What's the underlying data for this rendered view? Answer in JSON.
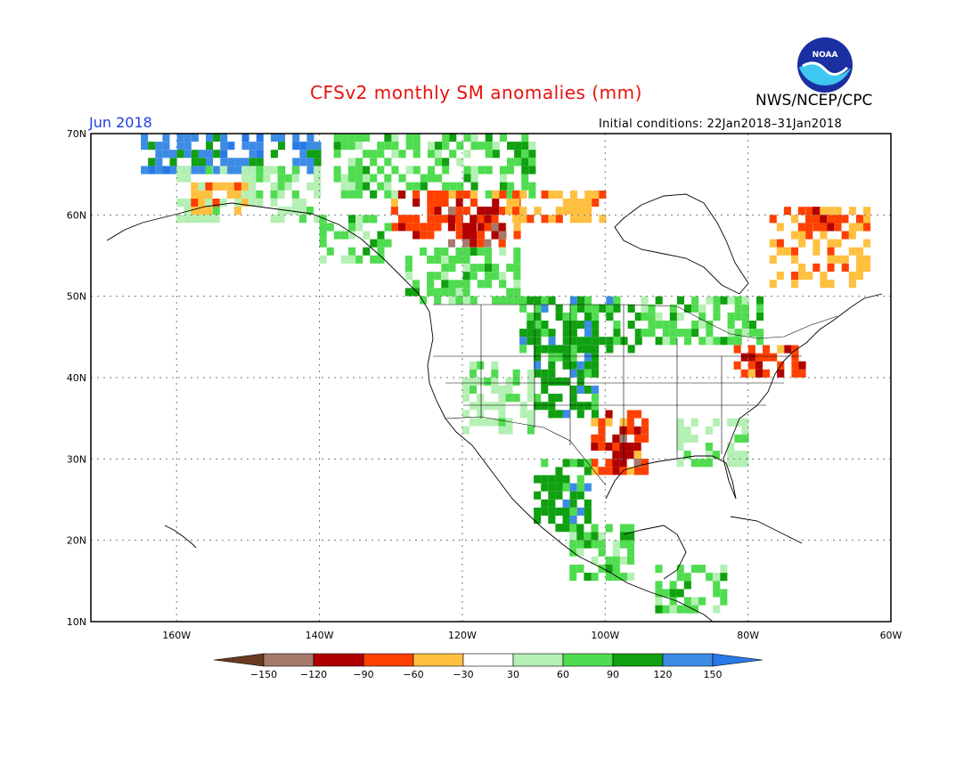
{
  "title": "CFSv2 monthly SM anomalies (mm)",
  "agency": "NWS/NCEP/CPC",
  "logo_text": "NOAA",
  "valid_month": "Jun 2018",
  "initial_conditions": "Initial conditions: 22Jan2018–31Jan2018",
  "map": {
    "lon_range": [
      -172,
      -60
    ],
    "lat_range": [
      10,
      70
    ],
    "lat_labels": [
      "70N",
      "60N",
      "50N",
      "40N",
      "30N",
      "20N",
      "10N"
    ],
    "lat_values": [
      70,
      60,
      50,
      40,
      30,
      20,
      10
    ],
    "lon_labels": [
      "160W",
      "140W",
      "120W",
      "100W",
      "80W",
      "60W"
    ],
    "lon_values": [
      -160,
      -140,
      -120,
      -100,
      -80,
      -60
    ],
    "grid_style": "dotted"
  },
  "colorbar": {
    "labels": [
      "−150",
      "−120",
      "−90",
      "−60",
      "−30",
      "30",
      "60",
      "90",
      "120",
      "150"
    ],
    "colors": [
      "#6b3a22",
      "#a57a6c",
      "#b00000",
      "#ff4000",
      "#ffc040",
      "#ffffff",
      "#b4f0b4",
      "#50dc50",
      "#10a010",
      "#3c8ce6",
      "#2878e6"
    ]
  },
  "anomaly_regions": [
    {
      "name": "alaska-north-slope",
      "lon": [
        -165,
        -140
      ],
      "lat": [
        66,
        70
      ],
      "level": 9
    },
    {
      "name": "yukon-north",
      "lon": [
        -138,
        -110
      ],
      "lat": [
        63,
        70
      ],
      "level": 7
    },
    {
      "name": "nw-territories-dry",
      "lon": [
        -130,
        -112
      ],
      "lat": [
        58,
        63
      ],
      "level": 3
    },
    {
      "name": "nw-territories-very-dry",
      "lon": [
        -122,
        -114
      ],
      "lat": [
        57,
        61
      ],
      "level": 2
    },
    {
      "name": "alaska-interior",
      "lon": [
        -160,
        -140
      ],
      "lat": [
        60,
        66
      ],
      "level": 6
    },
    {
      "name": "southern-alaska-dry",
      "lon": [
        -158,
        -150
      ],
      "lat": [
        61,
        64
      ],
      "level": 4
    },
    {
      "name": "alaska-panhandle",
      "lon": [
        -140,
        -130
      ],
      "lat": [
        55,
        60
      ],
      "level": 7
    },
    {
      "name": "british-columbia",
      "lon": [
        -128,
        -112
      ],
      "lat": [
        50,
        56
      ],
      "level": 7
    },
    {
      "name": "hudson-north-dry",
      "lon": [
        -114,
        -100
      ],
      "lat": [
        60,
        63
      ],
      "level": 4
    },
    {
      "name": "quebec-labrador-dry",
      "lon": [
        -77,
        -63
      ],
      "lat": [
        52,
        61
      ],
      "level": 4
    },
    {
      "name": "ungava-red",
      "lon": [
        -73,
        -66
      ],
      "lat": [
        59,
        61
      ],
      "level": 3
    },
    {
      "name": "north-plains-wet",
      "lon": [
        -112,
        -95
      ],
      "lat": [
        44,
        50
      ],
      "level": 8
    },
    {
      "name": "great-lakes-wet",
      "lon": [
        -95,
        -78
      ],
      "lat": [
        45,
        50
      ],
      "level": 7
    },
    {
      "name": "central-rockies-wet",
      "lon": [
        -110,
        -101
      ],
      "lat": [
        36,
        44
      ],
      "level": 8
    },
    {
      "name": "great-basin-light",
      "lon": [
        -120,
        -110
      ],
      "lat": [
        34,
        42
      ],
      "level": 6
    },
    {
      "name": "southern-plains-dry",
      "lon": [
        -102,
        -94
      ],
      "lat": [
        29,
        36
      ],
      "level": 3
    },
    {
      "name": "texas-red",
      "lon": [
        -99,
        -95
      ],
      "lat": [
        30,
        34
      ],
      "level": 2
    },
    {
      "name": "mexico-sierra-wet",
      "lon": [
        -110,
        -102
      ],
      "lat": [
        22,
        30
      ],
      "level": 8
    },
    {
      "name": "mexico-south-wet",
      "lon": [
        -105,
        -96
      ],
      "lat": [
        16,
        22
      ],
      "level": 7
    },
    {
      "name": "central-america-wet",
      "lon": [
        -93,
        -83
      ],
      "lat": [
        12,
        17
      ],
      "level": 7
    },
    {
      "name": "southeast-light-wet",
      "lon": [
        -90,
        -80
      ],
      "lat": [
        30,
        35
      ],
      "level": 6
    },
    {
      "name": "northeast-mixed-dry",
      "lon": [
        -82,
        -72
      ],
      "lat": [
        41,
        44
      ],
      "level": 3
    }
  ]
}
